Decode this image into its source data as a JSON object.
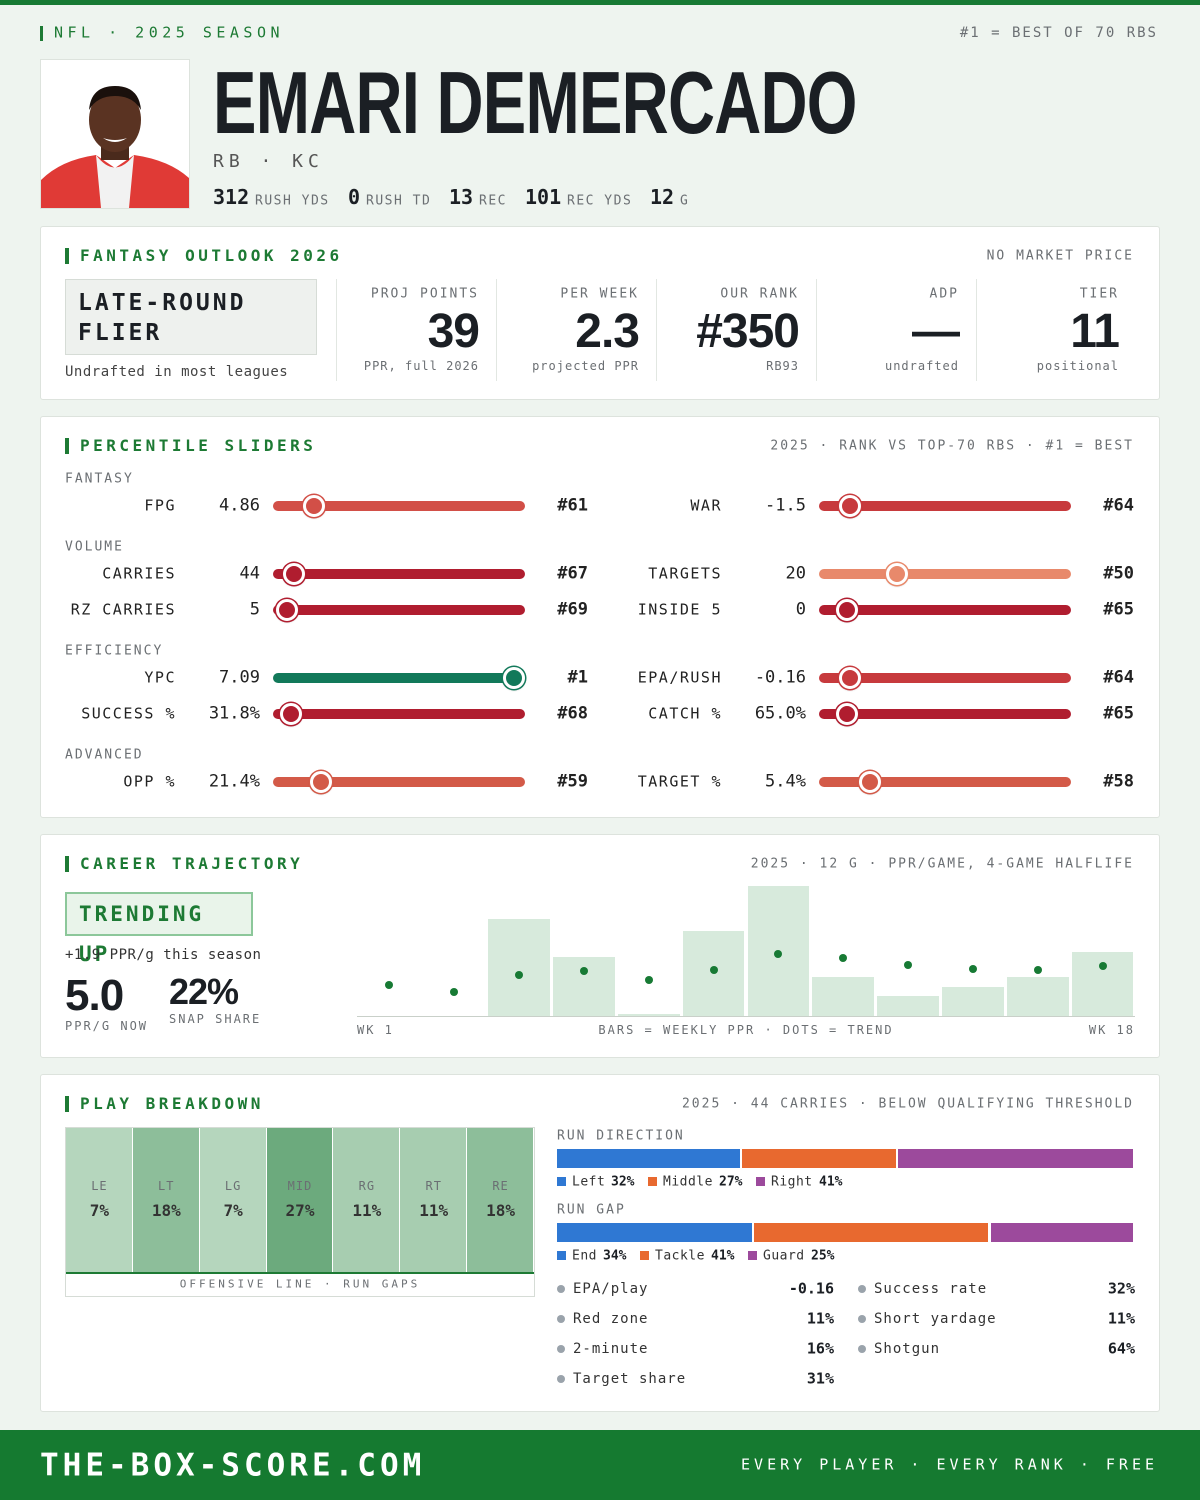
{
  "header": {
    "league": "NFL · 2025 SEASON",
    "note": "#1 = BEST OF 70 RBS",
    "name": "EMARI DEMERCADO",
    "position_team": "RB · KC",
    "stats": [
      {
        "value": "312",
        "label": "RUSH YDS"
      },
      {
        "value": "0",
        "label": "RUSH TD"
      },
      {
        "value": "13",
        "label": "REC"
      },
      {
        "value": "101",
        "label": "REC YDS"
      },
      {
        "value": "12",
        "label": "G"
      }
    ]
  },
  "outlook": {
    "title": "FANTASY OUTLOOK 2026",
    "note": "NO MARKET PRICE",
    "tag": "LATE-ROUND FLIER",
    "tag_note": "Undrafted in most leagues",
    "metrics": [
      {
        "label": "PROJ POINTS",
        "value": "39",
        "sub": "PPR, full 2026"
      },
      {
        "label": "PER WEEK",
        "value": "2.3",
        "sub": "projected PPR"
      },
      {
        "label": "OUR RANK",
        "value": "#350",
        "sub": "RB93"
      },
      {
        "label": "ADP",
        "value": "—",
        "sub": "undrafted"
      },
      {
        "label": "TIER",
        "value": "11",
        "sub": "positional"
      }
    ]
  },
  "percentiles": {
    "title": "PERCENTILE SLIDERS",
    "note": "2025 · RANK VS TOP-70 RBS · #1 = BEST",
    "rank_of": 70,
    "groups": [
      {
        "name": "FANTASY",
        "items": [
          {
            "label": "FPG",
            "value": "4.86",
            "rank": {
              "value": 61,
              "label": "#61"
            },
            "color": "#d24f47"
          },
          {
            "label": "WAR",
            "value": "-1.5",
            "rank": {
              "value": 64,
              "label": "#64"
            },
            "color": "#c73a3d"
          }
        ]
      },
      {
        "name": "VOLUME",
        "items": [
          {
            "label": "CARRIES",
            "value": "44",
            "rank": {
              "value": 67,
              "label": "#67"
            },
            "color": "#b01d2f"
          },
          {
            "label": "TARGETS",
            "value": "20",
            "rank": {
              "value": 50,
              "label": "#50"
            },
            "color": "#e8896b"
          },
          {
            "label": "RZ CARRIES",
            "value": "5",
            "rank": {
              "value": 69,
              "label": "#69"
            },
            "color": "#b01d2f"
          },
          {
            "label": "INSIDE 5",
            "value": "0",
            "rank": {
              "value": 65,
              "label": "#65"
            },
            "color": "#b01d2f"
          }
        ]
      },
      {
        "name": "EFFICIENCY",
        "items": [
          {
            "label": "YPC",
            "value": "7.09",
            "rank": {
              "value": 1,
              "label": "#1"
            },
            "color": "#12795a"
          },
          {
            "label": "EPA/RUSH",
            "value": "-0.16",
            "rank": {
              "value": 64,
              "label": "#64"
            },
            "color": "#c73a3d"
          },
          {
            "label": "SUCCESS %",
            "value": "31.8%",
            "rank": {
              "value": 68,
              "label": "#68"
            },
            "color": "#b01d2f"
          },
          {
            "label": "CATCH %",
            "value": "65.0%",
            "rank": {
              "value": 65,
              "label": "#65"
            },
            "color": "#b01d2f"
          }
        ]
      },
      {
        "name": "ADVANCED",
        "items": [
          {
            "label": "OPP %",
            "value": "21.4%",
            "rank": {
              "value": 59,
              "label": "#59"
            },
            "color": "#d35a48"
          },
          {
            "label": "TARGET %",
            "value": "5.4%",
            "rank": {
              "value": 58,
              "label": "#58"
            },
            "color": "#d35a48"
          }
        ]
      }
    ]
  },
  "trajectory": {
    "title": "CAREER TRAJECTORY",
    "note": "2025 · 12 G · PPR/GAME, 4-GAME HALFLIFE",
    "tag": "TRENDING UP",
    "delta": "+1.9 PPR/g this season",
    "now": {
      "value": "5.0",
      "label": "PPR/G NOW"
    },
    "snap": {
      "value": "22%",
      "label": "SNAP SHARE"
    },
    "chart": {
      "type": "bar",
      "x_start": "WK 1",
      "x_end": "WK 18",
      "legend": "BARS = WEEKLY PPR · DOTS = TREND",
      "series": [
        {
          "color": "#d7eadc",
          "values": [
            0,
            0,
            9.7,
            5.9,
            0.2,
            8.5,
            13.0,
            3.9,
            2.0,
            2.9,
            3.9,
            6.4
          ]
        },
        {
          "color": "#177a34",
          "values": [
            3.1,
            2.4,
            4.1,
            4.5,
            3.6,
            4.6,
            6.2,
            5.8,
            5.1,
            4.7,
            4.6,
            5.0
          ]
        }
      ]
    }
  },
  "play": {
    "title": "PLAY BREAKDOWN",
    "note": "2025 · 44 CARRIES · BELOW QUALIFYING THRESHOLD",
    "gaps_caption": "OFFENSIVE LINE · RUN GAPS",
    "gaps": [
      {
        "name": "LE",
        "value": 7,
        "label": "7%"
      },
      {
        "name": "LT",
        "value": 18,
        "label": "18%"
      },
      {
        "name": "LG",
        "value": 7,
        "label": "7%"
      },
      {
        "name": "MID",
        "value": 27,
        "label": "27%"
      },
      {
        "name": "RG",
        "value": 11,
        "label": "11%"
      },
      {
        "name": "RT",
        "value": 11,
        "label": "11%"
      },
      {
        "name": "RE",
        "value": 18,
        "label": "18%"
      }
    ],
    "run_direction": {
      "title": "RUN DIRECTION",
      "segments": [
        {
          "name": "Left",
          "value": 32,
          "label": "32%",
          "color": "#2f78d3"
        },
        {
          "name": "Middle",
          "value": 27,
          "label": "27%",
          "color": "#e8692f"
        },
        {
          "name": "Right",
          "value": 41,
          "label": "41%",
          "color": "#9c4a9c"
        }
      ]
    },
    "run_gap": {
      "title": "RUN GAP",
      "segments": [
        {
          "name": "End",
          "value": 34,
          "label": "34%",
          "color": "#2f78d3"
        },
        {
          "name": "Tackle",
          "value": 41,
          "label": "41%",
          "color": "#e8692f"
        },
        {
          "name": "Guard",
          "value": 25,
          "label": "25%",
          "color": "#9c4a9c"
        }
      ]
    },
    "situations": [
      {
        "label": "EPA/play",
        "value": "-0.16"
      },
      {
        "label": "Success rate",
        "value": "32%"
      },
      {
        "label": "Red zone",
        "value": "11%"
      },
      {
        "label": "Short yardage",
        "value": "11%"
      },
      {
        "label": "2-minute",
        "value": "16%"
      },
      {
        "label": "Shotgun",
        "value": "64%"
      },
      {
        "label": "Target share",
        "value": "31%"
      }
    ]
  },
  "footer": {
    "site": "THE-BOX-SCORE.COM",
    "tagline": "EVERY PLAYER · EVERY RANK · FREE"
  }
}
